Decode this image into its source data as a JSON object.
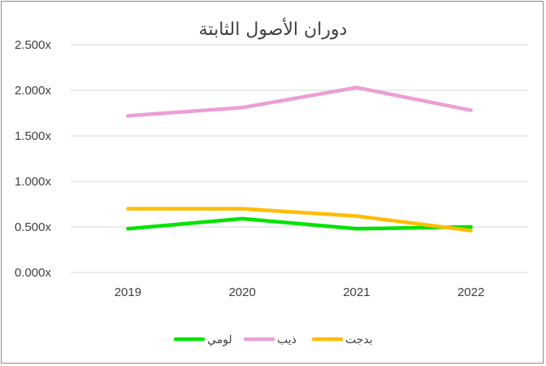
{
  "chart_data": {
    "type": "line",
    "title": "دوران الأصول الثابتة",
    "xlabel": "",
    "ylabel": "",
    "categories": [
      "2019",
      "2020",
      "2021",
      "2022"
    ],
    "ylim": [
      0,
      2.5
    ],
    "yticks": [
      "0.000x",
      "0.500x",
      "1.000x",
      "1.500x",
      "2.000x",
      "2.500x"
    ],
    "grid": true,
    "legend_position": "bottom",
    "series": [
      {
        "name": "لومي",
        "color": "#00e400",
        "values": [
          0.48,
          0.59,
          0.48,
          0.5
        ]
      },
      {
        "name": "ذيب",
        "color": "#ec9ed6",
        "values": [
          1.72,
          1.81,
          2.03,
          1.78
        ]
      },
      {
        "name": "بدجت",
        "color": "#ffbd00",
        "values": [
          0.7,
          0.7,
          0.62,
          0.46
        ]
      }
    ]
  }
}
